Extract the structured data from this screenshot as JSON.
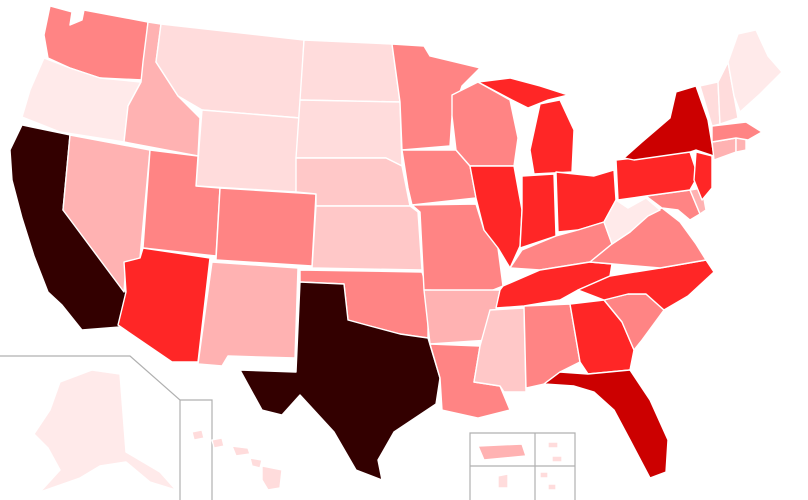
{
  "palette": {
    "level0": "#ffeaea",
    "level1": "#ffdcdc",
    "level2": "#ffc8c8",
    "level3": "#ffb2b2",
    "level4": "#ff8484",
    "level5": "#ff2626",
    "level6": "#cc0000",
    "level7": "#330000"
  },
  "states": [
    {
      "id": "WA",
      "level": 4
    },
    {
      "id": "OR",
      "level": 0
    },
    {
      "id": "CA",
      "level": 7
    },
    {
      "id": "ID",
      "level": 3
    },
    {
      "id": "NV",
      "level": 3
    },
    {
      "id": "MT",
      "level": 1
    },
    {
      "id": "WY",
      "level": 1
    },
    {
      "id": "UT",
      "level": 4
    },
    {
      "id": "AZ",
      "level": 5
    },
    {
      "id": "CO",
      "level": 4
    },
    {
      "id": "NM",
      "level": 3
    },
    {
      "id": "ND",
      "level": 1
    },
    {
      "id": "SD",
      "level": 1
    },
    {
      "id": "NE",
      "level": 2
    },
    {
      "id": "KS",
      "level": 2
    },
    {
      "id": "OK",
      "level": 4
    },
    {
      "id": "TX",
      "level": 7
    },
    {
      "id": "MN",
      "level": 4
    },
    {
      "id": "IA",
      "level": 4
    },
    {
      "id": "MO",
      "level": 4
    },
    {
      "id": "AR",
      "level": 3
    },
    {
      "id": "LA",
      "level": 4
    },
    {
      "id": "WI",
      "level": 4
    },
    {
      "id": "IL",
      "level": 5
    },
    {
      "id": "MS",
      "level": 2
    },
    {
      "id": "AL",
      "level": 4
    },
    {
      "id": "MI",
      "level": 5
    },
    {
      "id": "IN",
      "level": 5
    },
    {
      "id": "OH",
      "level": 5
    },
    {
      "id": "KY",
      "level": 4
    },
    {
      "id": "TN",
      "level": 5
    },
    {
      "id": "GA",
      "level": 5
    },
    {
      "id": "FL",
      "level": 6
    },
    {
      "id": "SC",
      "level": 4
    },
    {
      "id": "NC",
      "level": 5
    },
    {
      "id": "VA",
      "level": 4
    },
    {
      "id": "WV",
      "level": 0
    },
    {
      "id": "MD",
      "level": 4
    },
    {
      "id": "DE",
      "level": 3
    },
    {
      "id": "PA",
      "level": 5
    },
    {
      "id": "NJ",
      "level": 5
    },
    {
      "id": "NY",
      "level": 6
    },
    {
      "id": "CT",
      "level": 3
    },
    {
      "id": "RI",
      "level": 3
    },
    {
      "id": "MA",
      "level": 4
    },
    {
      "id": "VT",
      "level": 1
    },
    {
      "id": "NH",
      "level": 1
    },
    {
      "id": "ME",
      "level": 0
    },
    {
      "id": "AK",
      "level": 0
    },
    {
      "id": "HI",
      "level": 1
    },
    {
      "id": "PR",
      "level": 3
    },
    {
      "id": "VI",
      "level": 1
    },
    {
      "id": "GU",
      "level": 1
    },
    {
      "id": "MP",
      "level": 1
    }
  ]
}
